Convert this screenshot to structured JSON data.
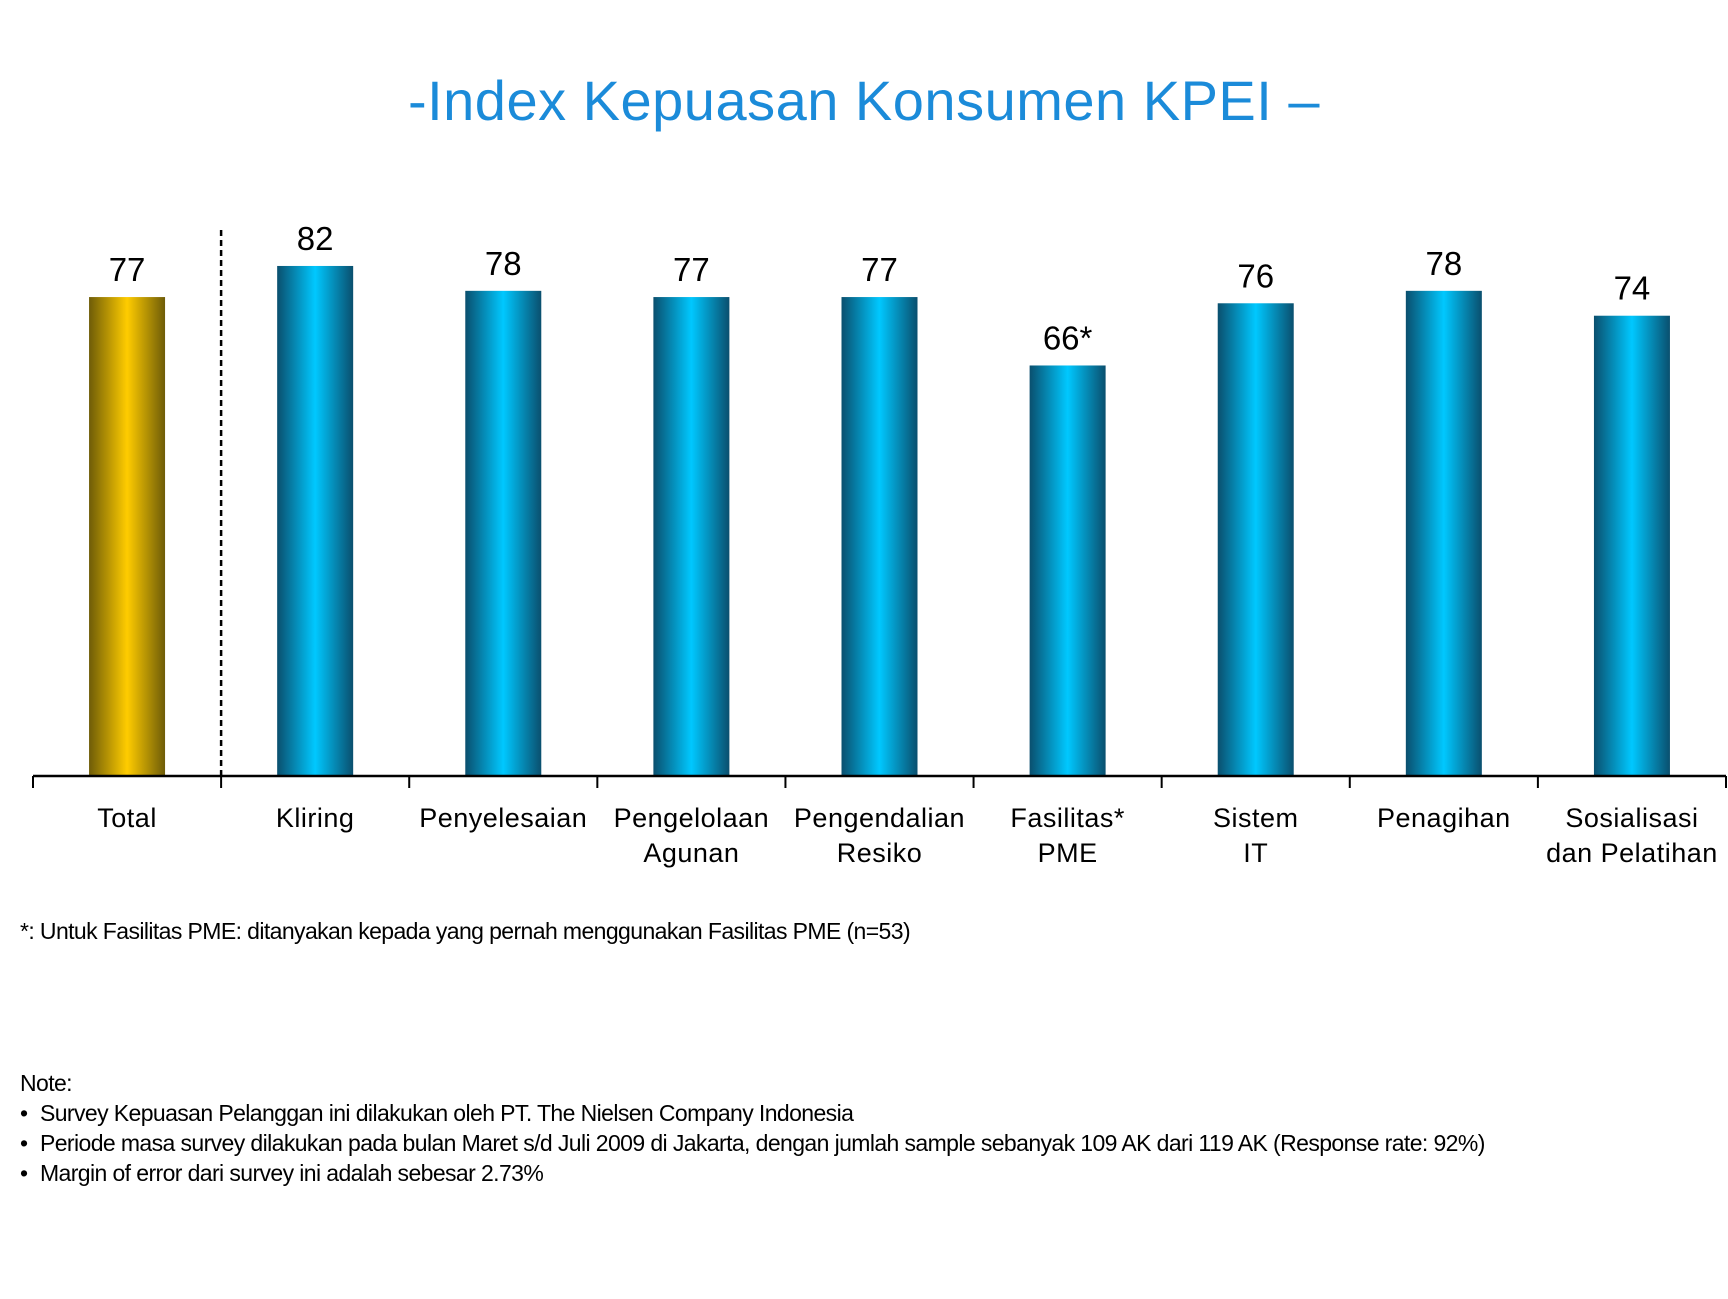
{
  "chart_data": {
    "type": "bar",
    "title": "-Index Kepuasan Konsumen KPEI –",
    "categories": [
      [
        "Total"
      ],
      [
        "Kliring"
      ],
      [
        "Penyelesaian"
      ],
      [
        "Pengelolaan",
        "Agunan"
      ],
      [
        "Pengendalian",
        "Resiko"
      ],
      [
        "Fasilitas*",
        "PME"
      ],
      [
        "Sistem",
        "IT"
      ],
      [
        "Penagihan"
      ],
      [
        "Sosialisasi",
        "dan Pelatihan"
      ]
    ],
    "values": [
      77,
      82,
      78,
      77,
      77,
      66,
      76,
      78,
      74
    ],
    "value_labels": [
      "77",
      "82",
      "78",
      "77",
      "77",
      "66*",
      "76",
      "78",
      "74"
    ],
    "highlight_index": 0,
    "separator_after_index": 0,
    "ylim": [
      0,
      100
    ],
    "xlabel": "",
    "ylabel": "",
    "grid": false,
    "colors": {
      "highlight_dark": "#6e5c08",
      "highlight_light": "#ffcc00",
      "bar_dark": "#0a4f6e",
      "bar_light": "#00c8ff",
      "title": "#1b8bd9"
    }
  },
  "footnote": "*: Untuk Fasilitas PME: ditanyakan kepada yang pernah menggunakan Fasilitas PME (n=53)",
  "notes": {
    "heading": "Note:",
    "items": [
      "Survey Kepuasan Pelanggan ini dilakukan oleh PT. The Nielsen Company Indonesia",
      "Periode masa survey dilakukan pada bulan Maret s/d Juli 2009 di Jakarta, dengan jumlah sample sebanyak 109 AK dari 119 AK (Response rate: 92%)",
      "Margin of error dari survey ini adalah sebesar 2.73%"
    ]
  }
}
